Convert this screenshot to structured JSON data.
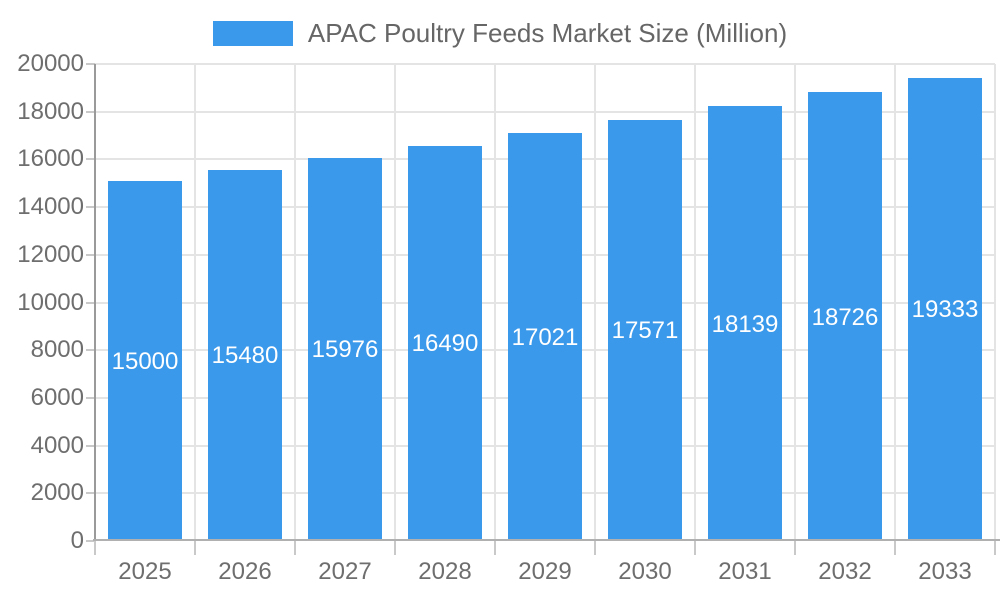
{
  "chart_data": {
    "type": "bar",
    "legend": {
      "label": "APAC Poultry Feeds Market Size (Million)",
      "position": "top"
    },
    "categories": [
      "2025",
      "2026",
      "2027",
      "2028",
      "2029",
      "2030",
      "2031",
      "2032",
      "2033"
    ],
    "series": [
      {
        "name": "APAC Poultry Feeds Market Size (Million)",
        "values": [
          15000,
          15480,
          15976,
          16490,
          17021,
          17571,
          18139,
          18726,
          19333
        ]
      }
    ],
    "value_labels": "inside-center",
    "xlabel": "",
    "ylabel": "",
    "ylim": [
      0,
      20000
    ],
    "yticks": [
      0,
      2000,
      4000,
      6000,
      8000,
      10000,
      12000,
      14000,
      16000,
      18000,
      20000
    ],
    "grid": true,
    "colors": {
      "bar": "#3A99EB",
      "value_label": "#FFFFFF",
      "axis_text": "#6E6E6E",
      "legend_text": "#666666",
      "grid_line": "#E4E4E4",
      "tick": "#C9C9C9",
      "x_axis_line": "#B0B0B0",
      "y_axis_line": "#9A9A9A",
      "background": "#FFFFFF"
    }
  }
}
